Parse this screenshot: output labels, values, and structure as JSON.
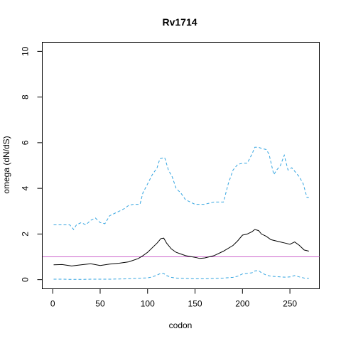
{
  "chart_data": {
    "type": "line",
    "title": "Rv1714",
    "xlabel": "codon",
    "ylabel": "omega (dN/dS)",
    "xlim": [
      -11,
      281
    ],
    "ylim": [
      -0.4,
      10.4
    ],
    "xticks": [
      0,
      50,
      100,
      150,
      200,
      250
    ],
    "yticks": [
      0,
      2,
      4,
      6,
      8,
      10
    ],
    "reference_line": {
      "y": 1,
      "color": "#cc66cc"
    },
    "series": [
      {
        "style": "solid",
        "color": "#000000",
        "x": [
          1,
          10,
          20,
          30,
          40,
          50,
          60,
          70,
          80,
          90,
          95,
          100,
          105,
          110,
          114,
          117,
          120,
          125,
          130,
          140,
          150,
          155,
          160,
          165,
          170,
          180,
          190,
          195,
          200,
          205,
          210,
          213,
          217,
          220,
          225,
          230,
          240,
          245,
          250,
          255,
          260,
          265,
          270
        ],
        "y": [
          0.65,
          0.66,
          0.6,
          0.65,
          0.7,
          0.62,
          0.68,
          0.72,
          0.78,
          0.92,
          1.05,
          1.2,
          1.4,
          1.6,
          1.8,
          1.82,
          1.6,
          1.35,
          1.2,
          1.05,
          0.98,
          0.93,
          0.95,
          1.0,
          1.05,
          1.25,
          1.5,
          1.7,
          1.95,
          2.0,
          2.1,
          2.2,
          2.15,
          2.0,
          1.9,
          1.75,
          1.65,
          1.6,
          1.55,
          1.65,
          1.5,
          1.3,
          1.25
        ]
      },
      {
        "style": "dashed",
        "color": "#33a4e0",
        "x": [
          1,
          18,
          22,
          25,
          30,
          35,
          40,
          45,
          50,
          55,
          60,
          65,
          70,
          75,
          80,
          85,
          92,
          95,
          100,
          105,
          110,
          113,
          118,
          122,
          126,
          130,
          135,
          140,
          150,
          160,
          170,
          180,
          185,
          190,
          195,
          200,
          205,
          210,
          213,
          217,
          220,
          225,
          228,
          233,
          236,
          240,
          244,
          248,
          252,
          256,
          260,
          264,
          268,
          270
        ],
        "y": [
          2.4,
          2.4,
          2.2,
          2.4,
          2.5,
          2.4,
          2.6,
          2.7,
          2.5,
          2.45,
          2.8,
          2.9,
          3.0,
          3.1,
          3.25,
          3.3,
          3.3,
          3.8,
          4.2,
          4.6,
          4.9,
          5.3,
          5.35,
          4.8,
          4.5,
          4.0,
          3.8,
          3.5,
          3.3,
          3.3,
          3.4,
          3.4,
          4.2,
          4.8,
          5.05,
          5.1,
          5.1,
          5.5,
          5.8,
          5.8,
          5.75,
          5.7,
          5.5,
          4.6,
          4.8,
          5.0,
          5.45,
          4.8,
          4.9,
          4.7,
          4.5,
          4.2,
          3.6,
          3.6
        ]
      },
      {
        "style": "dashed",
        "color": "#33a4e0",
        "x": [
          1,
          10,
          20,
          30,
          40,
          50,
          60,
          70,
          80,
          90,
          100,
          105,
          110,
          114,
          117,
          120,
          125,
          130,
          140,
          150,
          160,
          170,
          180,
          190,
          195,
          200,
          205,
          210,
          213,
          217,
          220,
          225,
          230,
          240,
          245,
          250,
          255,
          260,
          265,
          270
        ],
        "y": [
          0.02,
          0.02,
          0.01,
          0.01,
          0.02,
          0.02,
          0.02,
          0.03,
          0.04,
          0.06,
          0.08,
          0.12,
          0.2,
          0.28,
          0.27,
          0.18,
          0.1,
          0.07,
          0.05,
          0.04,
          0.04,
          0.05,
          0.07,
          0.1,
          0.15,
          0.25,
          0.28,
          0.3,
          0.38,
          0.4,
          0.3,
          0.2,
          0.15,
          0.12,
          0.11,
          0.12,
          0.18,
          0.12,
          0.07,
          0.06
        ]
      }
    ]
  }
}
